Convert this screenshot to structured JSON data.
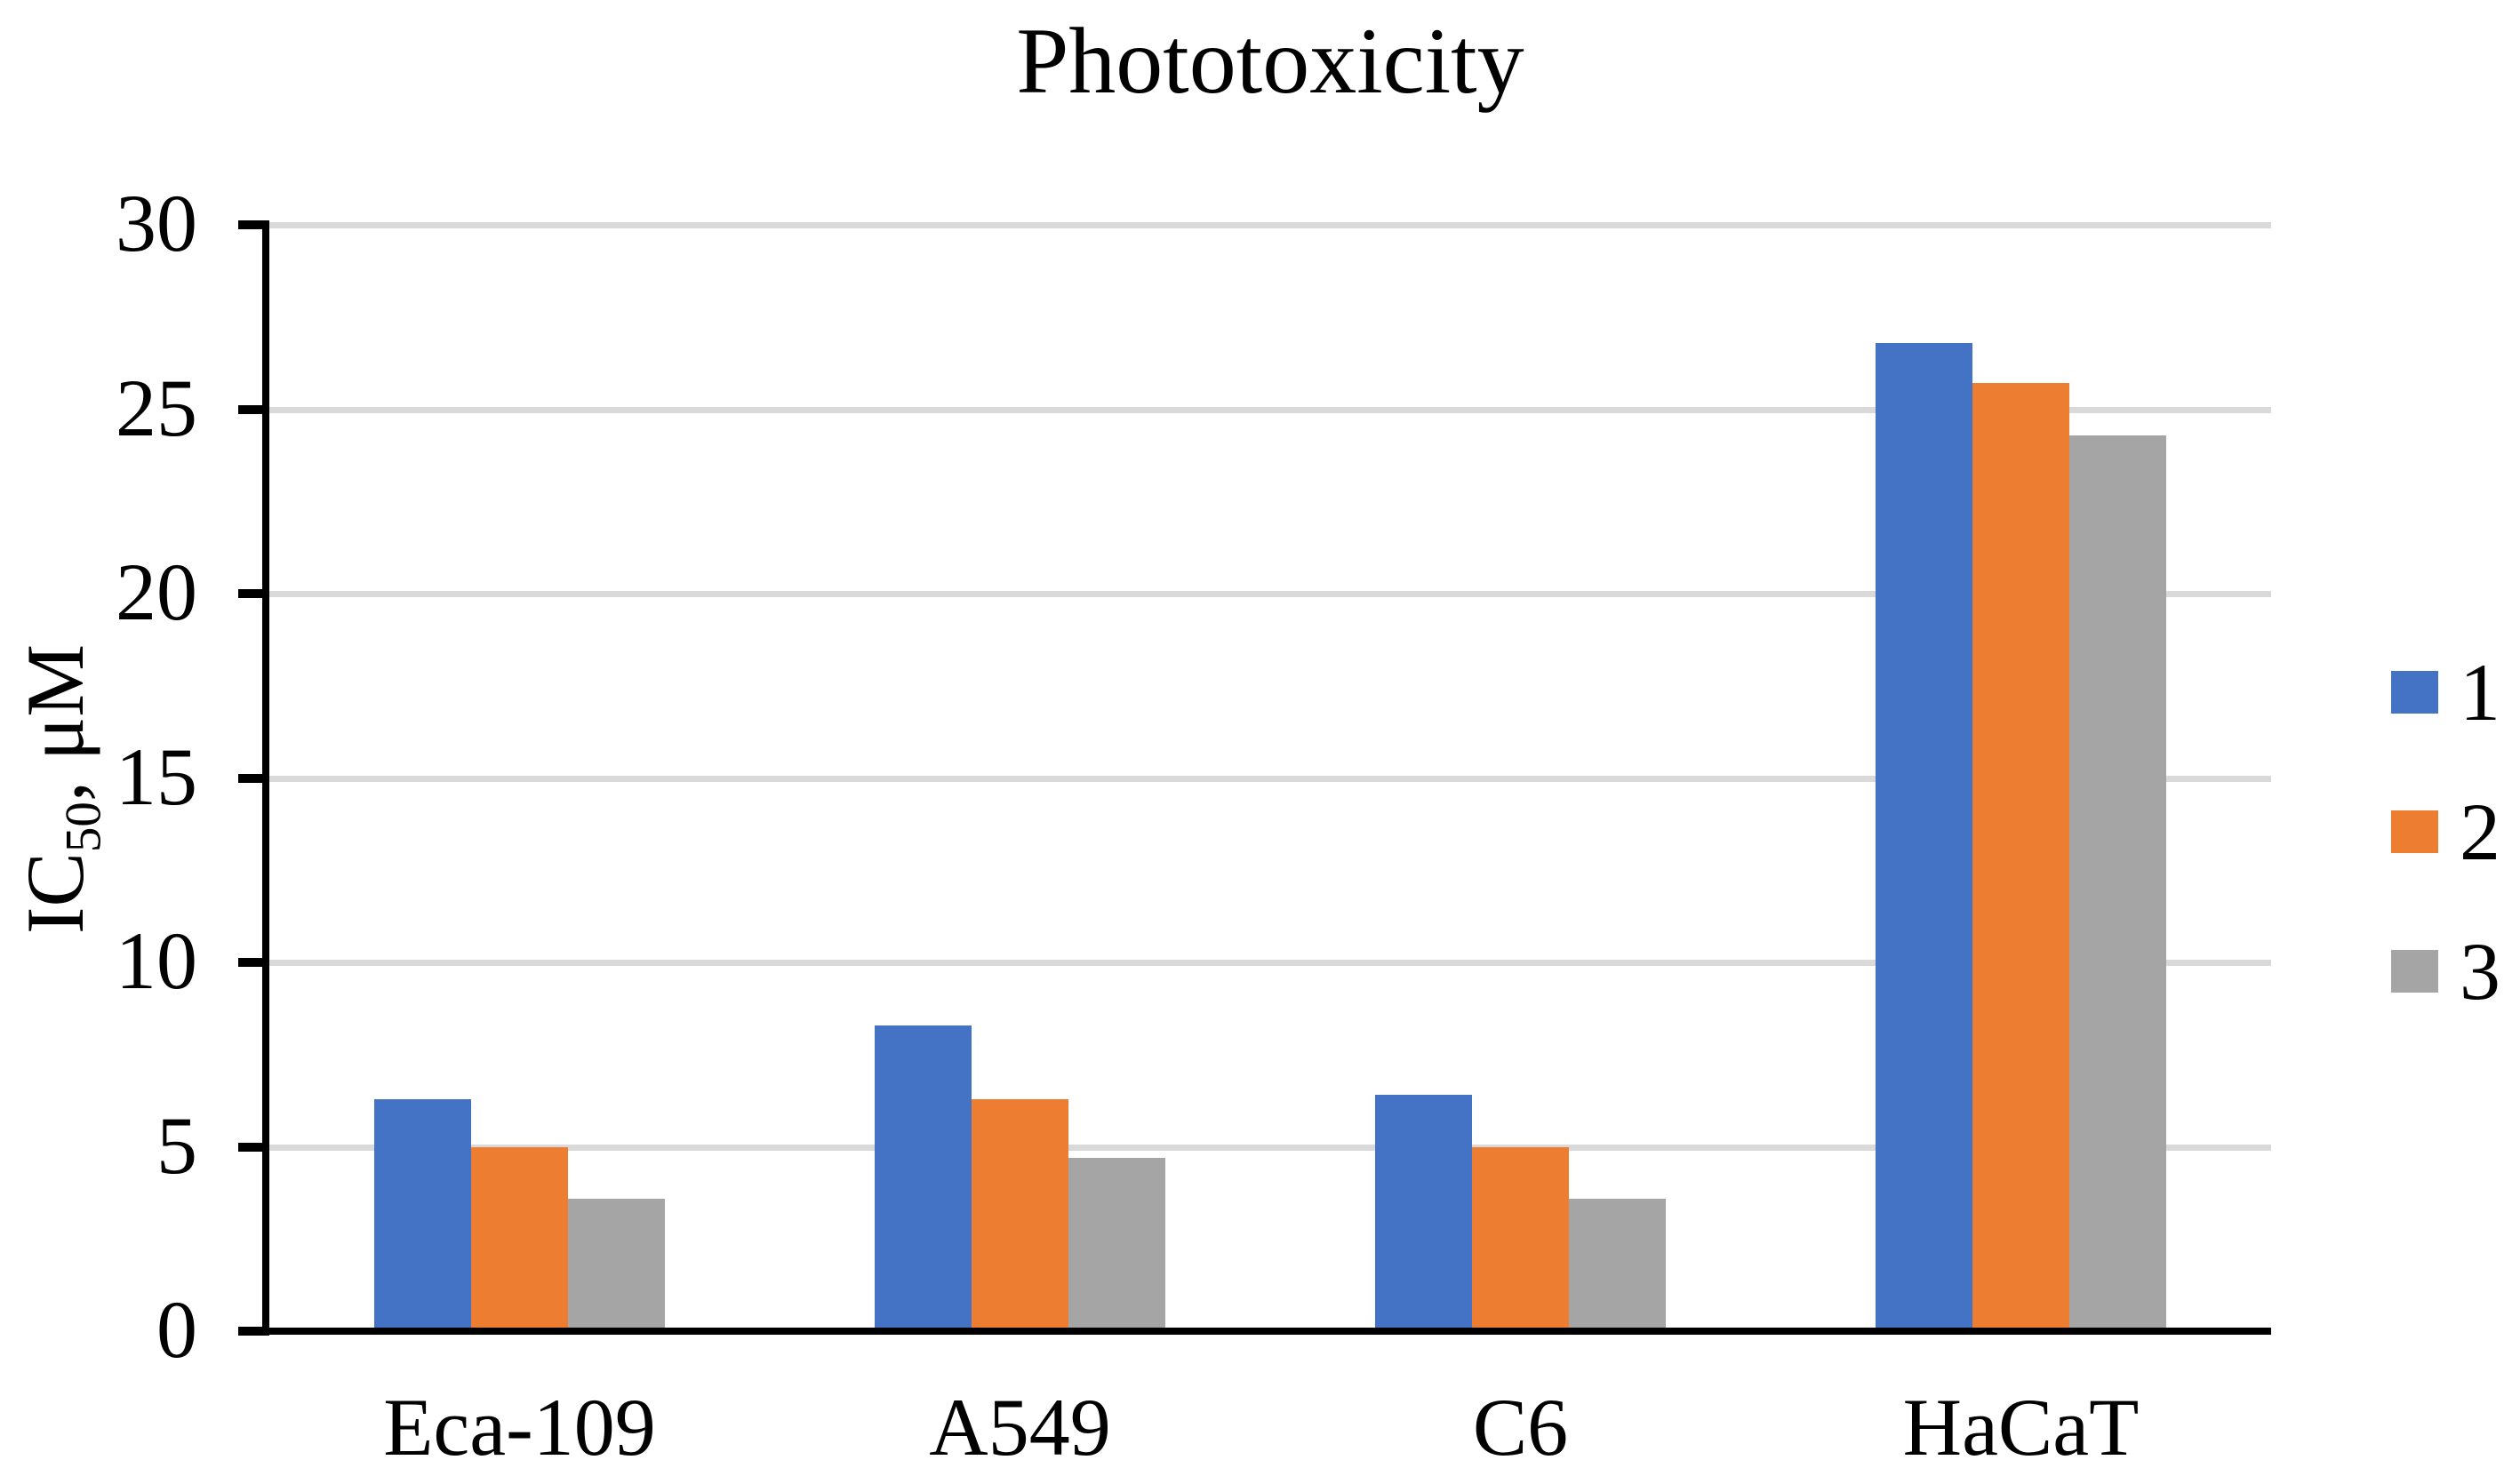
{
  "chart_data": {
    "type": "bar",
    "title": "Phototoxicity",
    "categories": [
      "Eca-109",
      "A549",
      "C6",
      "HaCaT"
    ],
    "series": [
      {
        "name": "1",
        "color": "#4472C4",
        "values": [
          6.3,
          8.3,
          6.4,
          26.8
        ]
      },
      {
        "name": "2",
        "color": "#ED7D31",
        "values": [
          5.0,
          6.3,
          5.0,
          25.7
        ]
      },
      {
        "name": "3",
        "color": "#A5A5A5",
        "values": [
          3.6,
          4.7,
          3.6,
          24.3
        ]
      }
    ],
    "xlabel": "",
    "ylabel": {
      "pre": "IC",
      "sub": "50",
      "post": ", μM"
    },
    "ylim": [
      0,
      30
    ],
    "y_ticks": [
      0,
      5,
      10,
      15,
      20,
      25,
      30
    ],
    "grid": "horizontal",
    "gridline_color": "#D9D9D9",
    "axis_color": "#000000",
    "background": "#FFFFFF",
    "legend_position": "right",
    "legend_labels": [
      "1",
      "2",
      "3"
    ]
  }
}
